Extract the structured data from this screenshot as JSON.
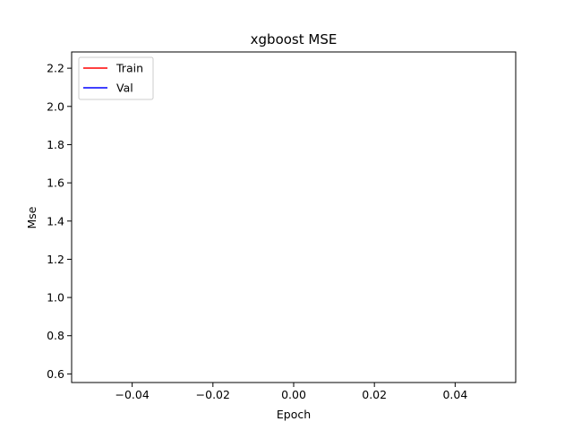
{
  "chart_data": {
    "type": "line",
    "title": "xgboost MSE",
    "xlabel": "Epoch",
    "ylabel": "Mse",
    "xlim": [
      -0.055,
      0.055
    ],
    "ylim": [
      0.555,
      2.285
    ],
    "x_ticks": [
      -0.04,
      -0.02,
      0.0,
      0.02,
      0.04
    ],
    "x_tick_labels": [
      "−0.04",
      "−0.02",
      "0.00",
      "0.02",
      "0.04"
    ],
    "y_ticks": [
      0.6,
      0.8,
      1.0,
      1.2,
      1.4,
      1.6,
      1.8,
      2.0,
      2.2
    ],
    "y_tick_labels": [
      "0.6",
      "0.8",
      "1.0",
      "1.2",
      "1.4",
      "1.6",
      "1.8",
      "2.0",
      "2.2"
    ],
    "grid": false,
    "legend_position": "top-left",
    "series": [
      {
        "name": "Train",
        "color": "#ff0000",
        "x": [],
        "y": []
      },
      {
        "name": "Val",
        "color": "#0000ff",
        "x": [],
        "y": []
      }
    ]
  }
}
